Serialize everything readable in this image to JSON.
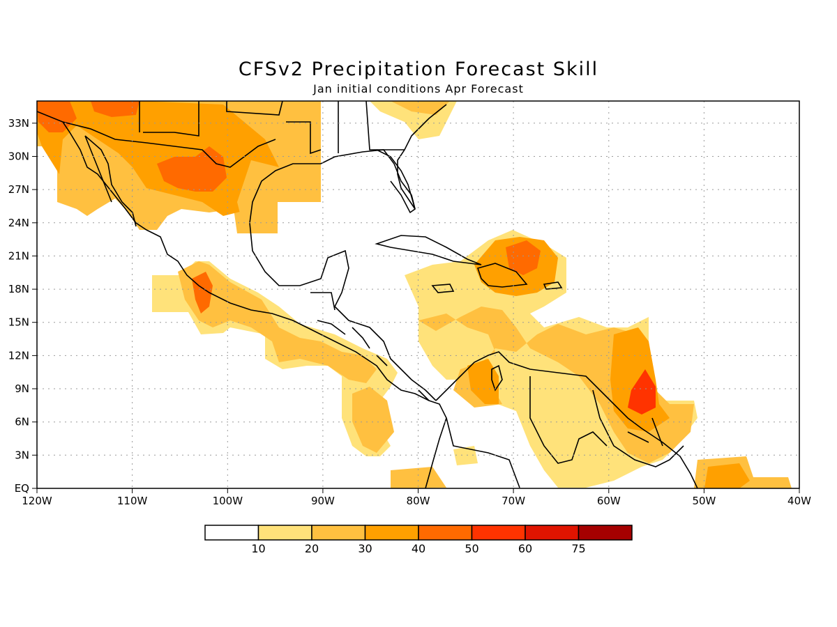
{
  "map": {
    "title": "CFSv2 Precipitation Forecast Skill",
    "subtitle": "Jan initial conditions  Apr Forecast",
    "extent": {
      "lon_min": -120,
      "lon_max": -40,
      "lat_min": 0,
      "lat_max": 35
    },
    "lon_labels": [
      "120W",
      "110W",
      "100W",
      "90W",
      "80W",
      "70W",
      "60W",
      "50W",
      "40W"
    ],
    "lat_labels": [
      "EQ",
      "3N",
      "6N",
      "9N",
      "12N",
      "15N",
      "18N",
      "21N",
      "24N",
      "27N",
      "30N",
      "33N"
    ],
    "grid": "dotted",
    "colorbar": {
      "colors": [
        "#ffffff",
        "#ffe27a",
        "#ffc040",
        "#ffa000",
        "#ff6a00",
        "#ff3300",
        "#e01400",
        "#a50000"
      ],
      "labels": [
        "10",
        "20",
        "30",
        "40",
        "50",
        "60",
        "75"
      ]
    }
  }
}
